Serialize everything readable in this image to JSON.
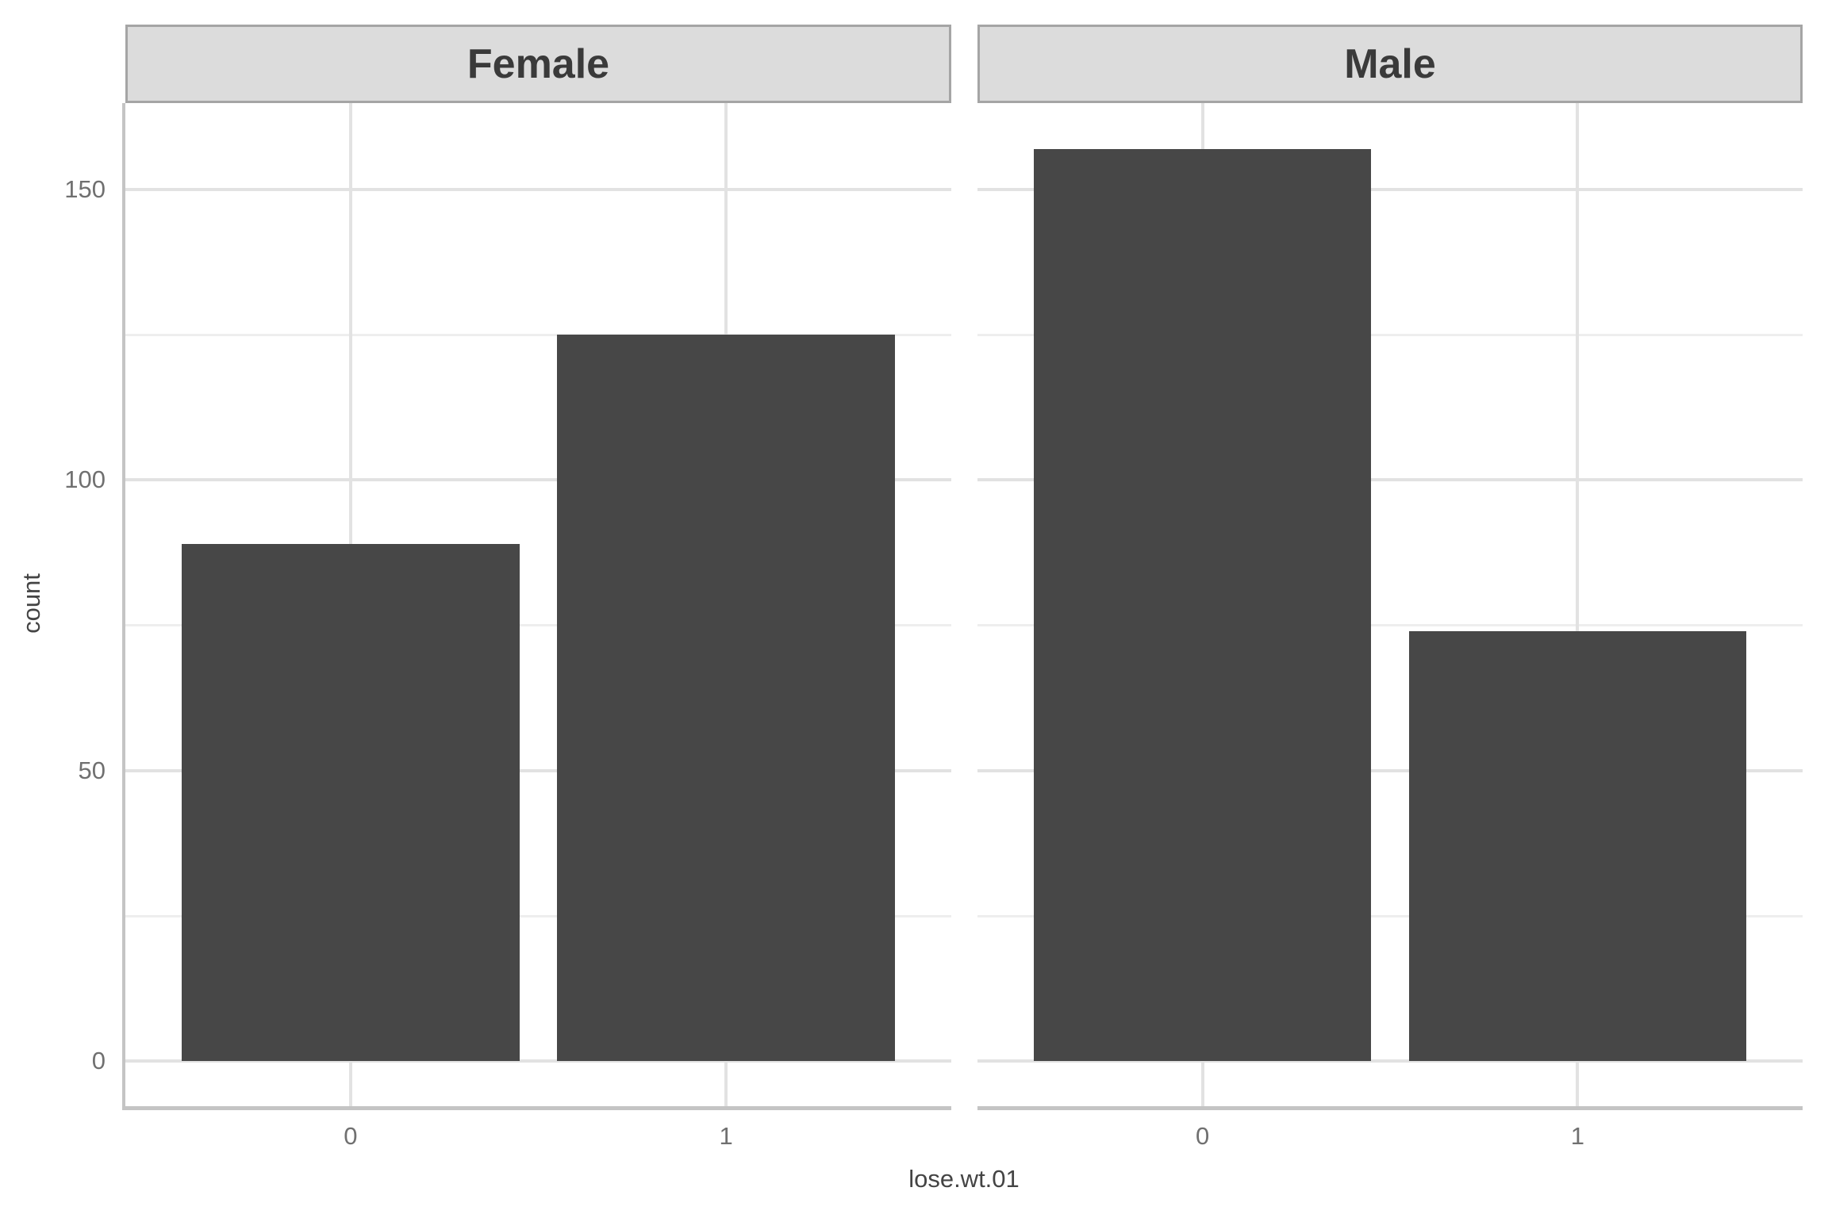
{
  "chart_data": {
    "type": "bar",
    "title": "",
    "xlabel": "lose.wt.01",
    "ylabel": "count",
    "categories": [
      "0",
      "1"
    ],
    "facets": [
      {
        "label": "Female",
        "values": [
          89,
          125
        ]
      },
      {
        "label": "Male",
        "values": [
          157,
          74
        ]
      }
    ],
    "y_major_ticks": [
      0,
      50,
      100,
      150
    ],
    "y_minor_ticks": [
      25,
      75,
      125
    ],
    "ylim": [
      -7.85,
      164.85
    ],
    "bar_width": 0.9,
    "grid": "horizontal major+minor, vertical major at category centers",
    "legend_position": "none"
  },
  "style": {
    "bar_fill": "#474747",
    "strip_bg": "#dcdcdc",
    "strip_border": "#a5a5a5",
    "strip_text": "#3a3a3a",
    "grid_major": "#e2e2e2",
    "grid_minor": "#eeeeee",
    "axis_line": "#c4c4c4",
    "tick_label": "#707070",
    "axis_title": "#444444",
    "background": "#ffffff"
  }
}
